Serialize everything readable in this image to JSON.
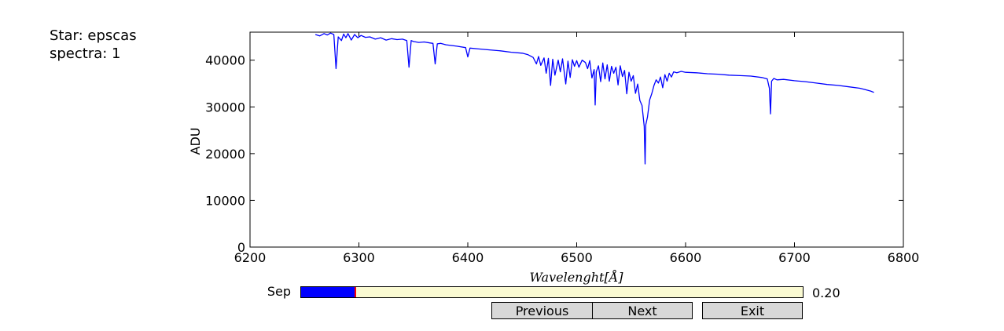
{
  "info": {
    "star_line": "Star: epscas",
    "spectra_line": "spectra: 1"
  },
  "slider": {
    "label": "Sep",
    "value_text": "0.20",
    "fraction": 0.11,
    "fill_color": "#0000ff",
    "marker_color": "#ff0000",
    "track_color": "#fafad2"
  },
  "buttons": {
    "previous": "Previous",
    "next": "Next",
    "exit": "Exit"
  },
  "chart_data": {
    "type": "line",
    "title": "",
    "xlabel": "Wavelenght[Å]",
    "ylabel": "ADU",
    "xlim": [
      6200,
      6800
    ],
    "ylim": [
      0,
      46000
    ],
    "xticks": [
      6200,
      6300,
      6400,
      6500,
      6600,
      6700,
      6800
    ],
    "xtick_labels": [
      "6200",
      "6300",
      "6400",
      "6500",
      "6600",
      "6700",
      "6800"
    ],
    "yticks": [
      0,
      10000,
      20000,
      30000,
      40000
    ],
    "ytick_labels": [
      "0",
      "10000",
      "20000",
      "30000",
      "40000"
    ],
    "grid": false,
    "legend": "none",
    "line_color": "#0000ff",
    "x": [
      6260,
      6264,
      6268,
      6271,
      6274,
      6277,
      6279,
      6281,
      6284,
      6286,
      6288,
      6290,
      6293,
      6296,
      6299,
      6302,
      6306,
      6310,
      6315,
      6320,
      6325,
      6330,
      6335,
      6340,
      6344,
      6346,
      6348,
      6350,
      6355,
      6360,
      6365,
      6368,
      6370,
      6372,
      6375,
      6380,
      6390,
      6398,
      6400,
      6402,
      6410,
      6420,
      6430,
      6440,
      6450,
      6455,
      6460,
      6463,
      6465,
      6467,
      6470,
      6472,
      6474,
      6476,
      6478,
      6480,
      6483,
      6485,
      6487,
      6490,
      6492,
      6494,
      6496,
      6498,
      6500,
      6502,
      6505,
      6508,
      6510,
      6512,
      6514,
      6516,
      6517,
      6518,
      6520,
      6522,
      6524,
      6526,
      6528,
      6530,
      6532,
      6534,
      6536,
      6538,
      6540,
      6542,
      6544,
      6546,
      6548,
      6550,
      6552,
      6554,
      6556,
      6558,
      6560,
      6562,
      6562.8,
      6563.5,
      6565,
      6567,
      6569,
      6571,
      6573,
      6575,
      6577,
      6579,
      6581,
      6583,
      6585,
      6587,
      6589,
      6592,
      6596,
      6600,
      6610,
      6620,
      6630,
      6640,
      6650,
      6660,
      6670,
      6675,
      6677,
      6678,
      6679,
      6681,
      6684,
      6690,
      6700,
      6710,
      6720,
      6730,
      6740,
      6750,
      6760,
      6765,
      6770,
      6773
    ],
    "y": [
      45500,
      45200,
      45700,
      45400,
      45800,
      45500,
      38200,
      45000,
      44200,
      45600,
      44800,
      45700,
      44300,
      45500,
      44800,
      45300,
      44900,
      45000,
      44500,
      44800,
      44300,
      44600,
      44400,
      44500,
      44200,
      38500,
      44200,
      44000,
      43800,
      43900,
      43700,
      43600,
      39200,
      43500,
      43600,
      43300,
      43000,
      42700,
      40700,
      42600,
      42400,
      42200,
      42000,
      41700,
      41500,
      41200,
      40600,
      39200,
      40800,
      38900,
      40500,
      37200,
      40400,
      34600,
      40200,
      36800,
      40000,
      37500,
      40300,
      34900,
      39800,
      36300,
      40100,
      38700,
      39900,
      38500,
      40000,
      39500,
      38200,
      39900,
      36200,
      38000,
      30400,
      37500,
      38800,
      35400,
      39400,
      36000,
      39000,
      35500,
      38700,
      37200,
      38500,
      34700,
      38800,
      36500,
      37800,
      32800,
      37400,
      35500,
      36700,
      32900,
      34900,
      31400,
      30300,
      25800,
      17800,
      26200,
      27800,
      31500,
      32900,
      34600,
      35800,
      35100,
      36400,
      34100,
      36900,
      35500,
      37200,
      36400,
      37500,
      37300,
      37600,
      37400,
      37300,
      37100,
      37000,
      36800,
      36700,
      36600,
      36300,
      36000,
      34000,
      28500,
      35500,
      36100,
      35800,
      35900,
      35600,
      35400,
      35100,
      34800,
      34600,
      34300,
      34000,
      33700,
      33400,
      33100
    ]
  }
}
